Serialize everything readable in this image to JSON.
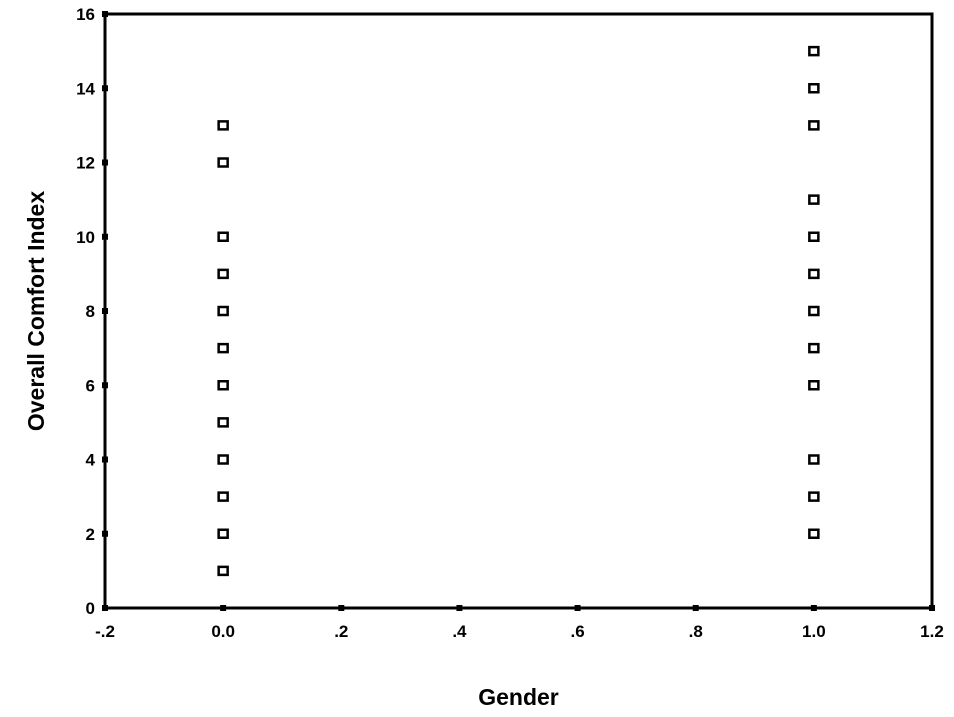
{
  "chart_data": {
    "type": "scatter",
    "title": "",
    "xlabel": "Gender",
    "ylabel": "Overall Comfort Index",
    "xlim": [
      -0.2,
      1.2
    ],
    "ylim": [
      0,
      16
    ],
    "x_ticks": [
      -0.2,
      0.0,
      0.2,
      0.4,
      0.6,
      0.8,
      1.0,
      1.2
    ],
    "x_tick_labels": [
      "-.2",
      "0.0",
      ".2",
      ".4",
      ".6",
      ".8",
      "1.0",
      "1.2"
    ],
    "y_ticks": [
      0,
      2,
      4,
      6,
      8,
      10,
      12,
      14,
      16
    ],
    "y_tick_labels": [
      "0",
      "2",
      "4",
      "6",
      "8",
      "10",
      "12",
      "14",
      "16"
    ],
    "grid": false,
    "legend": "none",
    "marker": "hollow-square",
    "color": "#000000",
    "points": [
      {
        "x": 0,
        "y": 1
      },
      {
        "x": 0,
        "y": 2
      },
      {
        "x": 0,
        "y": 3
      },
      {
        "x": 0,
        "y": 4
      },
      {
        "x": 0,
        "y": 5
      },
      {
        "x": 0,
        "y": 6
      },
      {
        "x": 0,
        "y": 7
      },
      {
        "x": 0,
        "y": 8
      },
      {
        "x": 0,
        "y": 9
      },
      {
        "x": 0,
        "y": 10
      },
      {
        "x": 0,
        "y": 12
      },
      {
        "x": 0,
        "y": 13
      },
      {
        "x": 1,
        "y": 2
      },
      {
        "x": 1,
        "y": 3
      },
      {
        "x": 1,
        "y": 4
      },
      {
        "x": 1,
        "y": 6
      },
      {
        "x": 1,
        "y": 7
      },
      {
        "x": 1,
        "y": 8
      },
      {
        "x": 1,
        "y": 9
      },
      {
        "x": 1,
        "y": 10
      },
      {
        "x": 1,
        "y": 11
      },
      {
        "x": 1,
        "y": 13
      },
      {
        "x": 1,
        "y": 14
      },
      {
        "x": 1,
        "y": 15
      }
    ]
  }
}
